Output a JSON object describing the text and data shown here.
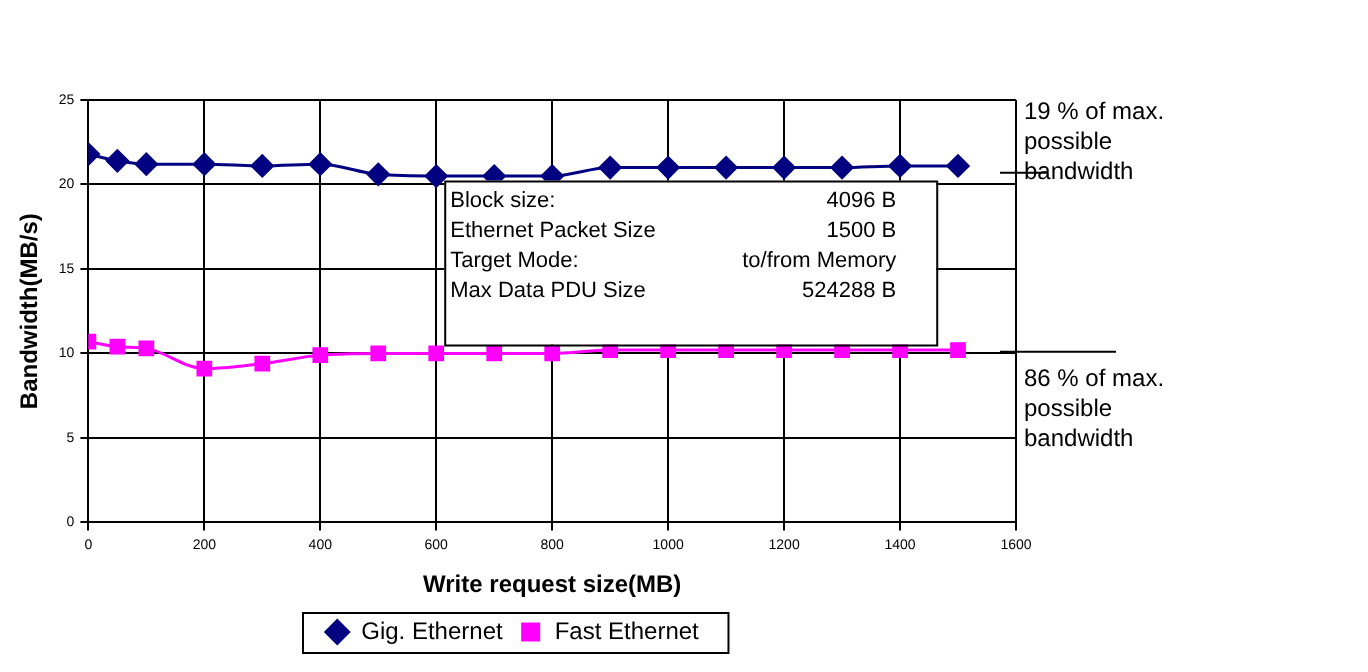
{
  "chart_data": {
    "type": "line",
    "xlabel": "Write request size(MB)",
    "ylabel": "Bandwidth(MB/s)",
    "x": [
      0,
      50,
      100,
      200,
      300,
      400,
      500,
      600,
      700,
      800,
      900,
      1000,
      1100,
      1200,
      1300,
      1400,
      1500
    ],
    "series": [
      {
        "name": "Gig. Ethernet",
        "color": "#000080",
        "marker": "diamond",
        "values": [
          21.8,
          21.4,
          21.2,
          21.2,
          21.1,
          21.2,
          20.6,
          20.5,
          20.5,
          20.5,
          21.0,
          21.0,
          21.0,
          21.0,
          21.0,
          21.1,
          21.1
        ]
      },
      {
        "name": "Fast Ethernet",
        "color": "#ff00ff",
        "marker": "square",
        "values": [
          10.7,
          10.4,
          10.3,
          9.1,
          9.4,
          9.9,
          10.0,
          10.0,
          10.0,
          10.0,
          10.2,
          10.2,
          10.2,
          10.2,
          10.2,
          10.2,
          10.2
        ]
      }
    ],
    "xlim": [
      0,
      1600
    ],
    "xticks": [
      0,
      200,
      400,
      600,
      800,
      1000,
      1200,
      1400,
      1600
    ],
    "ylim": [
      0,
      25
    ],
    "yticks": [
      0,
      5,
      10,
      15,
      20,
      25
    ],
    "grid": true,
    "legend": "bottom",
    "line_style": "solid",
    "ref_lines": [
      {
        "axis": "y",
        "value": 20.7,
        "label": "19 % of max. possible bandwidth",
        "color": "#000000"
      },
      {
        "axis": "y",
        "value": 10.1,
        "label": "86 % of max. possible bandwidth",
        "color": "#000000"
      }
    ],
    "annotations": [
      "Block size:",
      "4096 B",
      "Ethernet Packet Size",
      "1500 B",
      "Target Mode:",
      "to/from Memory",
      "Max Data PDU Size",
      "524288 B"
    ]
  }
}
